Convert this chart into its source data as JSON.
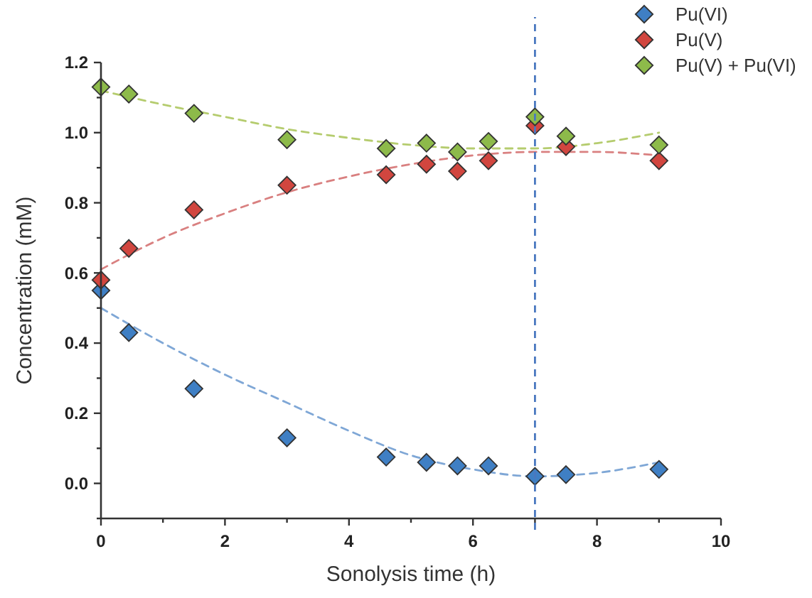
{
  "chart_data": {
    "type": "scatter",
    "xlabel": "Sonolysis time (h)",
    "ylabel": "Concentration (mM)",
    "xlim": [
      0,
      10
    ],
    "ylim": [
      -0.1,
      1.2
    ],
    "xticks": [
      0,
      {
        "value": 1,
        "label": null
      },
      2,
      {
        "value": 3,
        "label": null
      },
      4,
      {
        "value": 5,
        "label": null
      },
      6,
      {
        "value": 7,
        "label": null
      },
      8,
      {
        "value": 9,
        "label": null
      },
      10
    ],
    "yticks": [
      {
        "value": -0.1,
        "label": null
      },
      {
        "value": 0,
        "label": "0.0"
      },
      {
        "value": 0.1,
        "label": null
      },
      0.2,
      {
        "value": 0.3,
        "label": null
      },
      0.4,
      {
        "value": 0.5,
        "label": null
      },
      0.6,
      {
        "value": 0.7,
        "label": null
      },
      0.8,
      {
        "value": 0.9,
        "label": null
      },
      {
        "value": 1,
        "label": "1.0"
      },
      {
        "value": 1.1,
        "label": null
      },
      1.2
    ],
    "grid": false,
    "legend": "top right",
    "marker": "diamond",
    "ref_lines": [
      {
        "axis": "x",
        "value": 7,
        "color": "#4a78c0",
        "line_style": "dashed"
      }
    ],
    "series": [
      {
        "type": "line",
        "color": "#7fa7d6",
        "line_style": "dashed",
        "marker": "none",
        "x": [
          0,
          1,
          2,
          3,
          4,
          5,
          6,
          7,
          8,
          9
        ],
        "values": [
          0.5,
          0.4,
          0.31,
          0.23,
          0.15,
          0.08,
          0.04,
          0.02,
          0.03,
          0.06
        ]
      },
      {
        "type": "line",
        "color": "#d98080",
        "line_style": "dashed",
        "marker": "none",
        "x": [
          0,
          1,
          2,
          3,
          4,
          5,
          6,
          7,
          8,
          9
        ],
        "values": [
          0.61,
          0.7,
          0.77,
          0.83,
          0.875,
          0.91,
          0.935,
          0.945,
          0.945,
          0.935
        ]
      },
      {
        "type": "line",
        "color": "#b5cc6e",
        "line_style": "dashed",
        "marker": "none",
        "x": [
          0,
          1,
          2,
          3,
          4,
          5,
          6,
          7,
          8,
          9
        ],
        "values": [
          1.12,
          1.08,
          1.045,
          1.01,
          0.985,
          0.965,
          0.955,
          0.955,
          0.97,
          1.0
        ]
      },
      {
        "name": "Pu(VI)",
        "color": "#3f7fc4",
        "x": [
          0,
          0.45,
          1.5,
          3,
          4.6,
          5.25,
          5.75,
          6.25,
          7,
          7.5,
          9
        ],
        "values": [
          0.55,
          0.43,
          0.27,
          0.13,
          0.075,
          0.06,
          0.05,
          0.05,
          0.02,
          0.025,
          0.04
        ]
      },
      {
        "name": "Pu(V)",
        "color": "#d1463f",
        "x": [
          0,
          0.45,
          1.5,
          3,
          4.6,
          5.25,
          5.75,
          6.25,
          7,
          7.5,
          9
        ],
        "values": [
          0.58,
          0.67,
          0.78,
          0.85,
          0.88,
          0.91,
          0.89,
          0.92,
          1.02,
          0.96,
          0.92
        ]
      },
      {
        "name": "Pu(V) + Pu(VI)",
        "color": "#8dba4a",
        "x": [
          0,
          0.45,
          1.5,
          3,
          4.6,
          5.25,
          5.75,
          6.25,
          7,
          7.5,
          9
        ],
        "values": [
          1.13,
          1.11,
          1.055,
          0.98,
          0.955,
          0.97,
          0.945,
          0.975,
          1.045,
          0.99,
          0.965
        ]
      }
    ]
  }
}
